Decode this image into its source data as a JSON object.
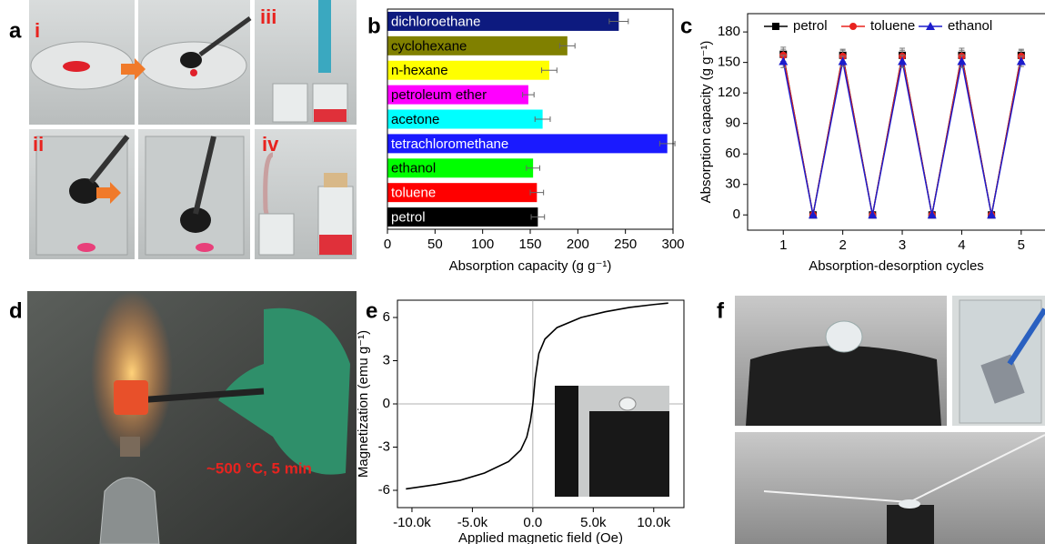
{
  "panel_labels": [
    "a",
    "b",
    "c",
    "d",
    "e",
    "f"
  ],
  "subpanel_labels": [
    "i",
    "ii",
    "iii",
    "iv"
  ],
  "annotation": "~500 °C, 5 min",
  "chart_data": [
    {
      "type": "hbar",
      "x_label": "Absorption capacity  (g g⁻¹)",
      "categories": [
        "dichloroethane",
        "cyclohexane",
        "n-hexane",
        "petroleum ether",
        "acetone",
        "tetrachloromethane",
        "ethanol",
        "toluene",
        "petrol"
      ],
      "values": [
        243,
        189,
        170,
        148,
        163,
        294,
        153,
        157,
        158
      ],
      "errors": [
        10,
        8,
        8,
        6,
        8,
        8,
        7,
        7,
        7
      ],
      "colors": [
        "#0d1a7f",
        "#808000",
        "#ffff00",
        "#ff00ff",
        "#00ffff",
        "#1a1aff",
        "#00ff00",
        "#ff0000",
        "#000000"
      ],
      "xlim": [
        0,
        300
      ],
      "xticks": [
        0,
        50,
        100,
        150,
        200,
        250,
        300
      ]
    },
    {
      "type": "line",
      "x_label": "Absorption-desorption cycles",
      "y_label": "Absorption capacity  (g g⁻¹)",
      "x": [
        1,
        1.5,
        2,
        2.5,
        3,
        3.5,
        4,
        4.5,
        5
      ],
      "series": [
        {
          "name": "petrol",
          "color": "#000000",
          "marker": "square",
          "values": [
            158,
            0,
            157,
            0,
            157,
            0,
            157,
            0,
            157
          ],
          "errors": [
            7,
            0,
            6,
            0,
            7,
            0,
            7,
            0,
            6
          ]
        },
        {
          "name": "toluene",
          "color": "#e8231f",
          "marker": "circle",
          "values": [
            157,
            0,
            156,
            0,
            156,
            0,
            156,
            0,
            156
          ],
          "errors": [
            6,
            0,
            6,
            0,
            6,
            0,
            6,
            0,
            6
          ]
        },
        {
          "name": "ethanol",
          "color": "#1c1ccc",
          "marker": "triangle",
          "values": [
            151,
            0,
            151,
            0,
            151,
            0,
            151,
            0,
            151
          ],
          "errors": [
            6,
            0,
            5,
            0,
            6,
            0,
            6,
            0,
            5
          ]
        }
      ],
      "xlim": [
        0.4,
        5.4
      ],
      "xticks": [
        1,
        2,
        3,
        4,
        5
      ],
      "ylim": [
        -15,
        198
      ],
      "yticks": [
        0,
        30,
        60,
        90,
        120,
        150,
        180
      ]
    },
    {
      "type": "curve",
      "x_label": "Applied magnetic field (Oe)",
      "y_label": "Magnetization (emu g⁻¹)",
      "x": [
        -10500,
        -8000,
        -6000,
        -4000,
        -2000,
        -1000,
        -500,
        -200,
        0,
        200,
        500,
        1000,
        2000,
        4000,
        6000,
        8000,
        10000,
        11200
      ],
      "values": [
        -5.9,
        -5.6,
        -5.3,
        -4.8,
        -4.0,
        -3.2,
        -2.3,
        -1.2,
        0,
        1.8,
        3.5,
        4.5,
        5.3,
        6.0,
        6.4,
        6.7,
        6.9,
        7.0
      ],
      "color": "#000000",
      "xlim": [
        -11200,
        12500
      ],
      "xticks": [
        {
          "value": -10000,
          "label": "-10.0k"
        },
        {
          "value": -5000,
          "label": "-5.0k"
        },
        {
          "value": 0,
          "label": "0.0"
        },
        {
          "value": 5000,
          "label": "5.0k"
        },
        {
          "value": 10000,
          "label": "10.0k"
        }
      ],
      "ylim": [
        -7.2,
        7.2
      ],
      "yticks": [
        -6,
        -3,
        0,
        3,
        6
      ]
    }
  ]
}
